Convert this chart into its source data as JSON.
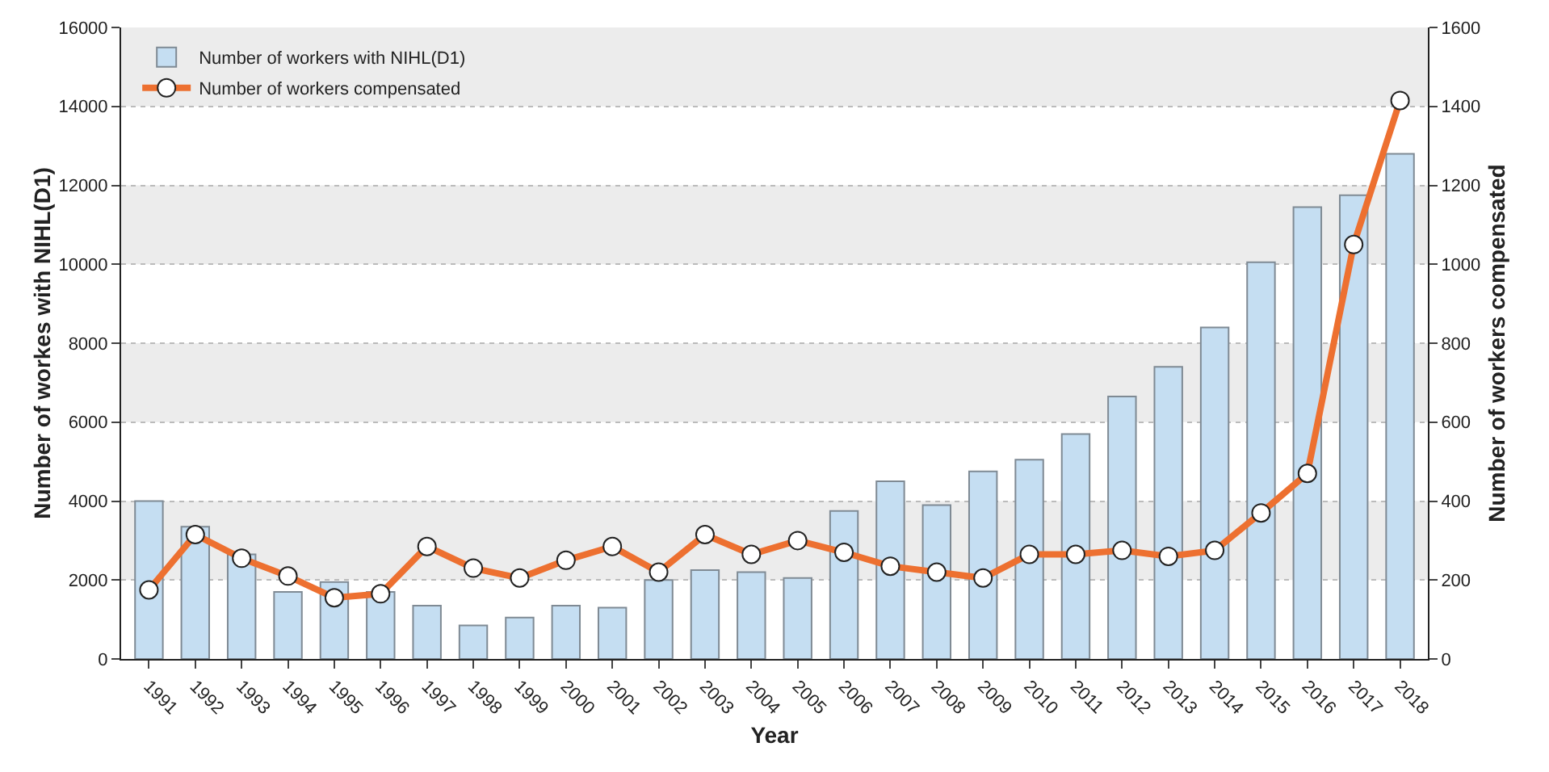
{
  "chart_data": {
    "type": "bar",
    "xlabel": "Year",
    "ylabel": "Number of workes with NIHL(D1)",
    "y2label": "Number of workers compensated",
    "categories": [
      "1991",
      "1992",
      "1993",
      "1994",
      "1995",
      "1996",
      "1997",
      "1998",
      "1999",
      "2000",
      "2001",
      "2002",
      "2003",
      "2004",
      "2005",
      "2006",
      "2007",
      "2008",
      "2009",
      "2010",
      "2011",
      "2012",
      "2013",
      "2014",
      "2015",
      "2016",
      "2017",
      "2018"
    ],
    "series": [
      {
        "name": "Number of workers with NIHL(D1)",
        "color": "#c5def2",
        "values": [
          4000,
          3350,
          2650,
          1700,
          1950,
          1700,
          1350,
          850,
          1050,
          1350,
          1300,
          2000,
          2250,
          2200,
          2050,
          3750,
          4500,
          3900,
          4750,
          5050,
          5700,
          6650,
          7400,
          8400,
          10050,
          11450,
          11750,
          12800
        ]
      },
      {
        "name": "Number of workers compensated",
        "type": "line",
        "axis": "y2",
        "color": "#ed7030",
        "marker": "circle",
        "line_style": "solid",
        "values": [
          175,
          315,
          255,
          210,
          155,
          165,
          285,
          230,
          205,
          250,
          285,
          220,
          315,
          265,
          300,
          270,
          235,
          220,
          205,
          265,
          265,
          275,
          260,
          275,
          370,
          470,
          1050,
          1415
        ]
      }
    ],
    "ylim": [
      0,
      16000
    ],
    "yticks": [
      0,
      2000,
      4000,
      6000,
      8000,
      10000,
      12000,
      14000,
      16000
    ],
    "y2lim": [
      0,
      1600
    ],
    "y2ticks": [
      0,
      200,
      400,
      600,
      800,
      1000,
      1200,
      1400,
      1600
    ],
    "bands": [
      {
        "axis": "y",
        "from": 2000,
        "to": 4000,
        "color": "#ececec"
      },
      {
        "axis": "y",
        "from": 6000,
        "to": 8000,
        "color": "#ececec"
      },
      {
        "axis": "y",
        "from": 10000,
        "to": 12000,
        "color": "#ececec"
      },
      {
        "axis": "y",
        "from": 14000,
        "to": 16000,
        "color": "#ececec"
      }
    ],
    "grid": "y",
    "legend": "top left"
  }
}
